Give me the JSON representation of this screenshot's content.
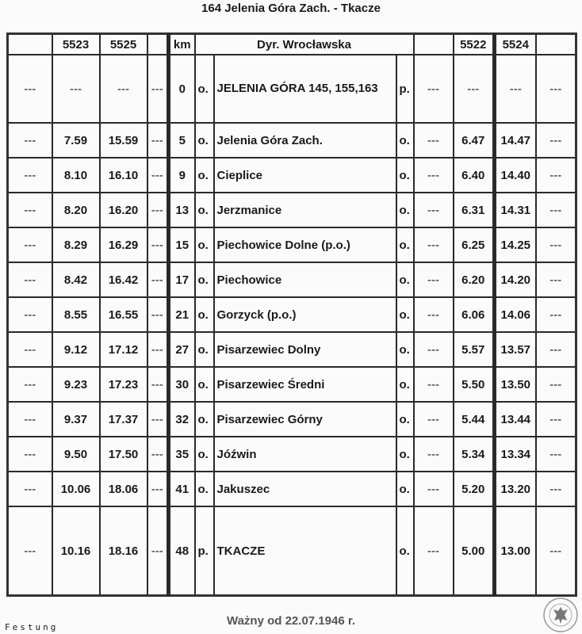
{
  "title": "164 Jelenia Góra Zach. - Tkacze",
  "header": [
    "",
    "5523",
    "5525",
    "",
    "km",
    "Dyr. Wrocławska",
    "",
    "5522",
    "5524",
    ""
  ],
  "rows": [
    [
      "---",
      "---",
      "---",
      "---",
      "0",
      "o.",
      "JELENIA GÓRA 145, 155,163",
      "p.",
      "---",
      "---",
      "---",
      "---"
    ],
    [
      "---",
      "7.59",
      "15.59",
      "---",
      "5",
      "o.",
      "Jelenia Góra Zach.",
      "o.",
      "---",
      "6.47",
      "14.47",
      "---"
    ],
    [
      "---",
      "8.10",
      "16.10",
      "---",
      "9",
      "o.",
      "Cieplice",
      "o.",
      "---",
      "6.40",
      "14.40",
      "---"
    ],
    [
      "---",
      "8.20",
      "16.20",
      "---",
      "13",
      "o.",
      "Jerzmanice",
      "o.",
      "---",
      "6.31",
      "14.31",
      "---"
    ],
    [
      "---",
      "8.29",
      "16.29",
      "---",
      "15",
      "o.",
      "Piechowice Dolne (p.o.)",
      "o.",
      "---",
      "6.25",
      "14.25",
      "---"
    ],
    [
      "---",
      "8.42",
      "16.42",
      "---",
      "17",
      "o.",
      "Piechowice",
      "o.",
      "---",
      "6.20",
      "14.20",
      "---"
    ],
    [
      "---",
      "8.55",
      "16.55",
      "---",
      "21",
      "o.",
      "Gorzyck (p.o.)",
      "o.",
      "---",
      "6.06",
      "14.06",
      "---"
    ],
    [
      "---",
      "9.12",
      "17.12",
      "---",
      "27",
      "o.",
      "Pisarzewiec Dolny",
      "o.",
      "---",
      "5.57",
      "13.57",
      "---"
    ],
    [
      "---",
      "9.23",
      "17.23",
      "---",
      "30",
      "o.",
      "Pisarzewiec Średni",
      "o.",
      "---",
      "5.50",
      "13.50",
      "---"
    ],
    [
      "---",
      "9.37",
      "17.37",
      "---",
      "32",
      "o.",
      "Pisarzewiec Górny",
      "o.",
      "---",
      "5.44",
      "13.44",
      "---"
    ],
    [
      "---",
      "9.50",
      "17.50",
      "---",
      "35",
      "o.",
      "Jóźwin",
      "o.",
      "---",
      "5.34",
      "13.34",
      "---"
    ],
    [
      "---",
      "10.06",
      "18.06",
      "---",
      "41",
      "o.",
      "Jakuszec",
      "o.",
      "---",
      "5.20",
      "13.20",
      "---"
    ],
    [
      "---",
      "10.16",
      "18.16",
      "---",
      "48",
      "p.",
      "TKACZE",
      "o.",
      "---",
      "5.00",
      "13.00",
      "---"
    ]
  ],
  "footer": "Ważny od 22.07.1946 r.",
  "corner_label": "Festung",
  "seal_icon": "eagle-seal"
}
